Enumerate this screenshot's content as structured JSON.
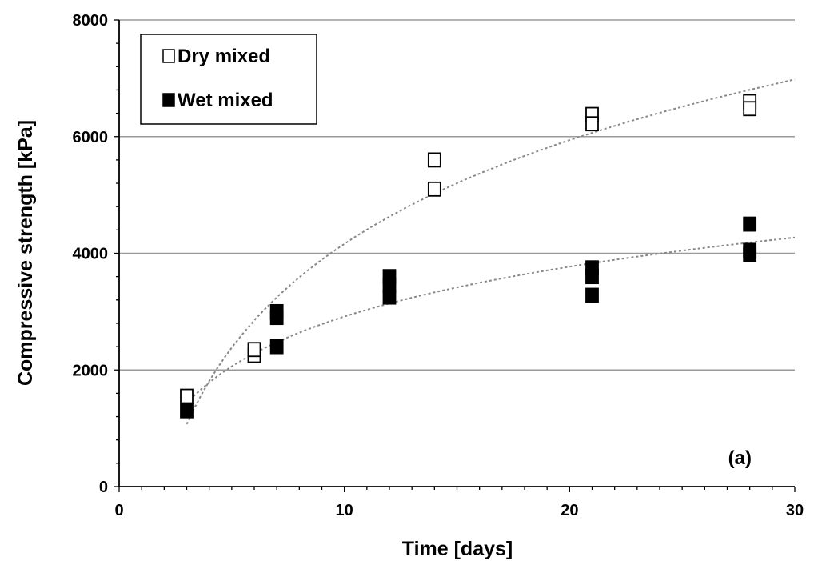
{
  "chart_data": {
    "type": "scatter",
    "xlabel": "Time [days]",
    "ylabel": "Compressive strength [kPa]",
    "xlim": [
      0,
      30
    ],
    "ylim": [
      0,
      8000
    ],
    "xticks": [
      0,
      10,
      20,
      30
    ],
    "yticks": [
      0,
      2000,
      4000,
      6000,
      8000
    ],
    "x_minor_step": 1,
    "y_minor_step": 400,
    "grid": "horizontal major",
    "legend_position": "top-left",
    "panel_label": "(a)",
    "series": [
      {
        "name": "Dry mixed",
        "marker": "open-square",
        "color": "#000000",
        "points": [
          {
            "x": 3,
            "y": 1550
          },
          {
            "x": 6,
            "y": 2250
          },
          {
            "x": 6,
            "y": 2350
          },
          {
            "x": 14,
            "y": 5600
          },
          {
            "x": 14,
            "y": 5100
          },
          {
            "x": 21,
            "y": 6380
          },
          {
            "x": 21,
            "y": 6220
          },
          {
            "x": 28,
            "y": 6600
          },
          {
            "x": 28,
            "y": 6480
          }
        ],
        "trend": {
          "x": [
            3,
            30
          ],
          "y": [
            1070,
            6980
          ],
          "style": "dotted",
          "color": "#888888"
        }
      },
      {
        "name": "Wet mixed",
        "marker": "filled-square",
        "color": "#000000",
        "points": [
          {
            "x": 3,
            "y": 1300
          },
          {
            "x": 7,
            "y": 3000
          },
          {
            "x": 7,
            "y": 2900
          },
          {
            "x": 7,
            "y": 2400
          },
          {
            "x": 12,
            "y": 3600
          },
          {
            "x": 12,
            "y": 3450
          },
          {
            "x": 12,
            "y": 3250
          },
          {
            "x": 21,
            "y": 3750
          },
          {
            "x": 21,
            "y": 3600
          },
          {
            "x": 21,
            "y": 3280
          },
          {
            "x": 28,
            "y": 4500
          },
          {
            "x": 28,
            "y": 4050
          },
          {
            "x": 28,
            "y": 3980
          }
        ],
        "trend": {
          "x": [
            3,
            30
          ],
          "y": [
            1430,
            4270
          ],
          "style": "dotted",
          "color": "#888888"
        }
      }
    ]
  }
}
